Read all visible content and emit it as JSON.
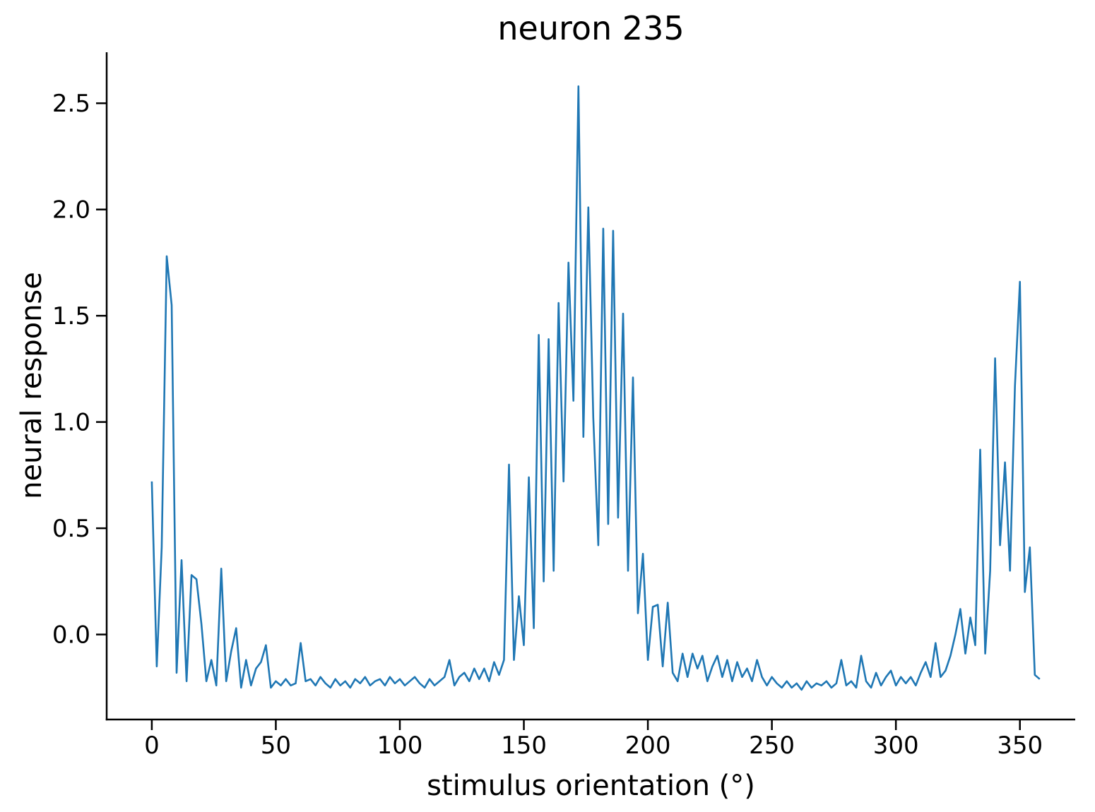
{
  "chart_data": {
    "type": "line",
    "title": "neuron 235",
    "xlabel": "stimulus orientation (°)",
    "ylabel": "neural response",
    "line_color": "#1f77b4",
    "line_width": 2.6,
    "axis_color": "#000000",
    "grid": false,
    "legend": null,
    "xlim": [
      -18.2,
      372.3
    ],
    "ylim": [
      -0.4,
      2.74
    ],
    "xticks": [
      0,
      50,
      100,
      150,
      200,
      250,
      300,
      350
    ],
    "xtick_labels": [
      "0",
      "50",
      "100",
      "150",
      "200",
      "250",
      "300",
      "350"
    ],
    "yticks": [
      0.0,
      0.5,
      1.0,
      1.5,
      2.0,
      2.5
    ],
    "ytick_labels": [
      "0.0",
      "0.5",
      "1.0",
      "1.5",
      "2.0",
      "2.5"
    ],
    "x": [
      0,
      2,
      4,
      6,
      8,
      10,
      12,
      14,
      16,
      18,
      20,
      22,
      24,
      26,
      28,
      30,
      32,
      34,
      36,
      38,
      40,
      42,
      44,
      46,
      48,
      50,
      52,
      54,
      56,
      58,
      60,
      62,
      64,
      66,
      68,
      70,
      72,
      74,
      76,
      78,
      80,
      82,
      84,
      86,
      88,
      90,
      92,
      94,
      96,
      98,
      100,
      102,
      104,
      106,
      108,
      110,
      112,
      114,
      116,
      118,
      120,
      122,
      124,
      126,
      128,
      130,
      132,
      134,
      136,
      138,
      140,
      142,
      144,
      146,
      148,
      150,
      152,
      154,
      156,
      158,
      160,
      162,
      164,
      166,
      168,
      170,
      172,
      174,
      176,
      178,
      180,
      182,
      184,
      186,
      188,
      190,
      192,
      194,
      196,
      198,
      200,
      202,
      204,
      206,
      208,
      210,
      212,
      214,
      216,
      218,
      220,
      222,
      224,
      226,
      228,
      230,
      232,
      234,
      236,
      238,
      240,
      242,
      244,
      246,
      248,
      250,
      252,
      254,
      256,
      258,
      260,
      262,
      264,
      266,
      268,
      270,
      272,
      274,
      276,
      278,
      280,
      282,
      284,
      286,
      288,
      290,
      292,
      294,
      296,
      298,
      300,
      302,
      304,
      306,
      308,
      310,
      312,
      314,
      316,
      318,
      320,
      322,
      324,
      326,
      328,
      330,
      332,
      334,
      336,
      338,
      340,
      342,
      344,
      346,
      348,
      350,
      352,
      354,
      356,
      358
    ],
    "y": [
      0.72,
      -0.15,
      0.41,
      1.78,
      1.55,
      -0.18,
      0.35,
      -0.22,
      0.28,
      0.26,
      0.05,
      -0.22,
      -0.12,
      -0.24,
      0.31,
      -0.22,
      -0.08,
      0.03,
      -0.25,
      -0.12,
      -0.24,
      -0.16,
      -0.13,
      -0.05,
      -0.25,
      -0.22,
      -0.24,
      -0.21,
      -0.24,
      -0.23,
      -0.04,
      -0.22,
      -0.21,
      -0.24,
      -0.2,
      -0.23,
      -0.25,
      -0.21,
      -0.24,
      -0.22,
      -0.25,
      -0.21,
      -0.23,
      -0.2,
      -0.24,
      -0.22,
      -0.21,
      -0.24,
      -0.2,
      -0.23,
      -0.21,
      -0.24,
      -0.22,
      -0.2,
      -0.23,
      -0.25,
      -0.21,
      -0.24,
      -0.22,
      -0.2,
      -0.12,
      -0.24,
      -0.2,
      -0.18,
      -0.22,
      -0.16,
      -0.21,
      -0.16,
      -0.22,
      -0.13,
      -0.19,
      -0.12,
      0.8,
      -0.12,
      0.18,
      -0.05,
      0.74,
      0.03,
      1.41,
      0.25,
      1.39,
      0.3,
      1.56,
      0.72,
      1.75,
      1.1,
      2.58,
      0.93,
      2.01,
      1.02,
      0.42,
      1.91,
      0.52,
      1.9,
      0.55,
      1.51,
      0.3,
      1.21,
      0.1,
      0.38,
      -0.12,
      0.13,
      0.14,
      -0.15,
      0.15,
      -0.18,
      -0.22,
      -0.09,
      -0.2,
      -0.09,
      -0.16,
      -0.1,
      -0.22,
      -0.15,
      -0.1,
      -0.2,
      -0.12,
      -0.22,
      -0.13,
      -0.2,
      -0.16,
      -0.22,
      -0.12,
      -0.2,
      -0.24,
      -0.2,
      -0.23,
      -0.25,
      -0.22,
      -0.25,
      -0.23,
      -0.26,
      -0.22,
      -0.25,
      -0.23,
      -0.24,
      -0.22,
      -0.25,
      -0.23,
      -0.12,
      -0.24,
      -0.22,
      -0.25,
      -0.1,
      -0.22,
      -0.25,
      -0.18,
      -0.24,
      -0.2,
      -0.17,
      -0.24,
      -0.2,
      -0.23,
      -0.2,
      -0.24,
      -0.18,
      -0.13,
      -0.2,
      -0.04,
      -0.2,
      -0.17,
      -0.1,
      0.0,
      0.12,
      -0.09,
      0.08,
      -0.05,
      0.87,
      -0.09,
      0.3,
      1.3,
      0.42,
      0.81,
      0.3,
      1.17,
      1.66,
      0.2,
      0.41,
      -0.19,
      -0.21
    ]
  }
}
